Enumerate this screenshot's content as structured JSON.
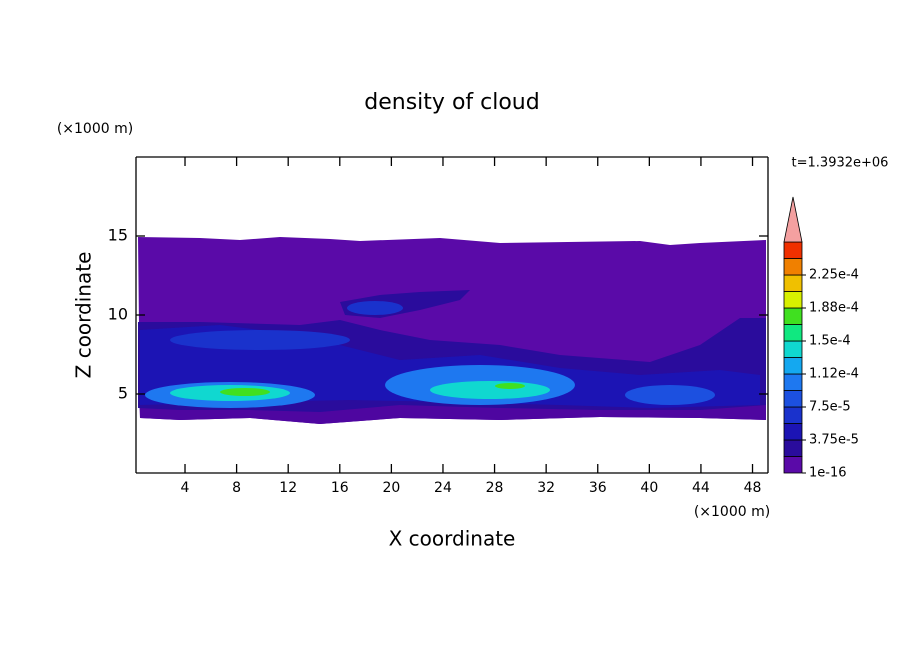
{
  "chart_data": {
    "type": "contour",
    "title": "density of cloud",
    "x_label": "X coordinate",
    "y_label": "Z coordinate",
    "x_unit": "(×1000 m)",
    "y_unit": "(×1000 m)",
    "time_label": "t=1.3932e+06",
    "xlim": [
      0.2,
      49.2
    ],
    "xticks": [
      4,
      8,
      12,
      16,
      20,
      24,
      28,
      32,
      36,
      40,
      44,
      48
    ],
    "ylim": [
      0,
      20
    ],
    "yticks": [
      5,
      10,
      15
    ],
    "colorbar": {
      "colors": [
        "#5a0aa8",
        "#2a0c9c",
        "#1c14b4",
        "#1a32cc",
        "#1c50e0",
        "#1e78f0",
        "#14a8f0",
        "#10d8d0",
        "#10e880",
        "#40e020",
        "#d8f000",
        "#f0c000",
        "#f08000",
        "#f03000"
      ],
      "extend_color": "#f4a0a0",
      "ticks": [
        {
          "value": 1e-16,
          "label": "1e-16"
        },
        {
          "value": 3.75e-05,
          "label": "3.75e-5"
        },
        {
          "value": 7.5e-05,
          "label": "7.5e-5"
        },
        {
          "value": 0.000112,
          "label": "1.12e-4"
        },
        {
          "value": 0.00015,
          "label": "1.5e-4"
        },
        {
          "value": 0.000188,
          "label": "1.88e-4"
        },
        {
          "value": 0.000225,
          "label": "2.25e-4"
        }
      ]
    }
  }
}
